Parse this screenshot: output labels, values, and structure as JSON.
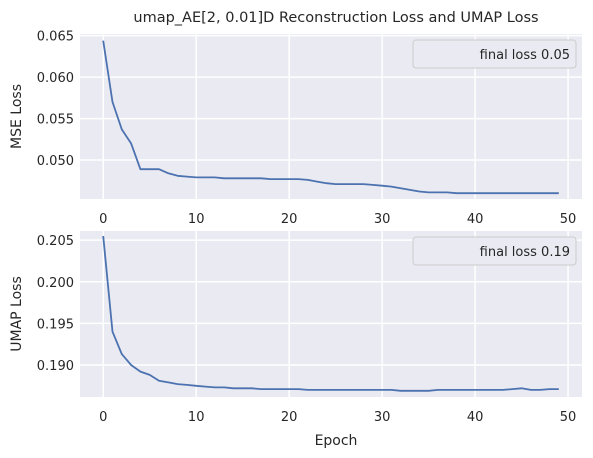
{
  "title": "umap_AE[2, 0.01]D Reconstruction Loss and UMAP Loss",
  "xlabel": "Epoch",
  "chart_data": [
    {
      "type": "line",
      "ylabel": "MSE Loss",
      "legend": "final loss 0.05",
      "legend_placement": "top-right",
      "xlim": [
        -2.5,
        51.5
      ],
      "ylim": [
        0.0453,
        0.0652
      ],
      "xticks": [
        0,
        10,
        20,
        30,
        40,
        50
      ],
      "yticks": [
        0.05,
        0.055,
        0.06,
        0.065
      ],
      "ytick_labels": [
        "0.050",
        "0.055",
        "0.060",
        "0.065"
      ],
      "grid": true,
      "color": "#4c72b0",
      "x": [
        0,
        1,
        2,
        3,
        4,
        5,
        6,
        7,
        8,
        9,
        10,
        11,
        12,
        13,
        14,
        15,
        16,
        17,
        18,
        19,
        20,
        21,
        22,
        23,
        24,
        25,
        26,
        27,
        28,
        29,
        30,
        31,
        32,
        33,
        34,
        35,
        36,
        37,
        38,
        39,
        40,
        41,
        42,
        43,
        44,
        45,
        46,
        47,
        48,
        49
      ],
      "y": [
        0.0644,
        0.057,
        0.0537,
        0.052,
        0.0489,
        0.0489,
        0.0489,
        0.0484,
        0.0481,
        0.048,
        0.0479,
        0.0479,
        0.0479,
        0.0478,
        0.0478,
        0.0478,
        0.0478,
        0.0478,
        0.0477,
        0.0477,
        0.0477,
        0.0477,
        0.0476,
        0.0474,
        0.0472,
        0.0471,
        0.0471,
        0.0471,
        0.0471,
        0.047,
        0.0469,
        0.0468,
        0.0466,
        0.0464,
        0.0462,
        0.0461,
        0.0461,
        0.0461,
        0.046,
        0.046,
        0.046,
        0.046,
        0.046,
        0.046,
        0.046,
        0.046,
        0.046,
        0.046,
        0.046,
        0.046
      ]
    },
    {
      "type": "line",
      "ylabel": "UMAP Loss",
      "legend": "final loss 0.19",
      "legend_placement": "top-right",
      "xlim": [
        -2.5,
        51.5
      ],
      "ylim": [
        0.18615,
        0.2061
      ],
      "xticks": [
        0,
        10,
        20,
        30,
        40,
        50
      ],
      "yticks": [
        0.19,
        0.195,
        0.2,
        0.205
      ],
      "ytick_labels": [
        "0.190",
        "0.195",
        "0.200",
        "0.205"
      ],
      "grid": true,
      "color": "#4c72b0",
      "x": [
        0,
        1,
        2,
        3,
        4,
        5,
        6,
        7,
        8,
        9,
        10,
        11,
        12,
        13,
        14,
        15,
        16,
        17,
        18,
        19,
        20,
        21,
        22,
        23,
        24,
        25,
        26,
        27,
        28,
        29,
        30,
        31,
        32,
        33,
        34,
        35,
        36,
        37,
        38,
        39,
        40,
        41,
        42,
        43,
        44,
        45,
        46,
        47,
        48,
        49
      ],
      "y": [
        0.2055,
        0.194,
        0.1913,
        0.19,
        0.1892,
        0.1888,
        0.1881,
        0.1879,
        0.1877,
        0.1876,
        0.1875,
        0.1874,
        0.1873,
        0.1873,
        0.1872,
        0.1872,
        0.1872,
        0.1871,
        0.1871,
        0.1871,
        0.1871,
        0.1871,
        0.187,
        0.187,
        0.187,
        0.187,
        0.187,
        0.187,
        0.187,
        0.187,
        0.187,
        0.187,
        0.1869,
        0.1869,
        0.1869,
        0.1869,
        0.187,
        0.187,
        0.187,
        0.187,
        0.187,
        0.187,
        0.187,
        0.187,
        0.1871,
        0.1872,
        0.187,
        0.187,
        0.1871,
        0.1871
      ]
    }
  ]
}
